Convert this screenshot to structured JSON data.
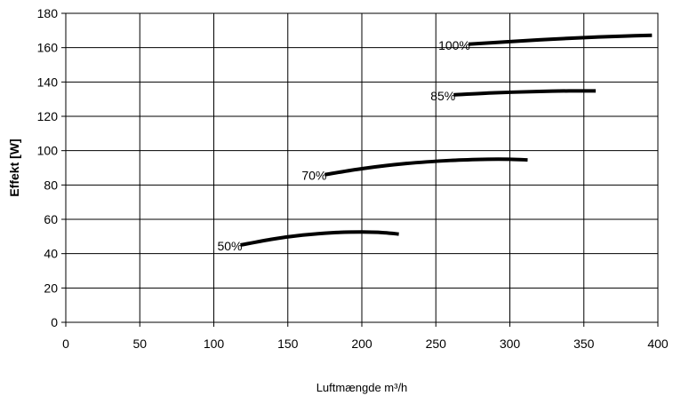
{
  "chart_data": {
    "type": "line",
    "title": "",
    "xlabel": "Luftmængde m³/h",
    "ylabel": "Effekt [W]",
    "xlim": [
      0,
      400
    ],
    "ylim": [
      0,
      180
    ],
    "xticks": [
      0,
      50,
      100,
      150,
      200,
      250,
      300,
      350,
      400
    ],
    "yticks": [
      0,
      20,
      40,
      60,
      80,
      100,
      120,
      140,
      160,
      180
    ],
    "grid": true,
    "legend": "none",
    "series": [
      {
        "label": "50%",
        "points": [
          [
            118,
            45
          ],
          [
            140,
            48.5
          ],
          [
            160,
            50.8
          ],
          [
            180,
            52.2
          ],
          [
            200,
            52.6
          ],
          [
            215,
            52.2
          ],
          [
            225,
            51.4
          ]
        ]
      },
      {
        "label": "70%",
        "points": [
          [
            175,
            86
          ],
          [
            200,
            89.5
          ],
          [
            230,
            92.5
          ],
          [
            260,
            94.3
          ],
          [
            285,
            95
          ],
          [
            300,
            95
          ],
          [
            312,
            94.6
          ]
        ]
      },
      {
        "label": "85%",
        "points": [
          [
            262,
            132.5
          ],
          [
            290,
            133.7
          ],
          [
            320,
            134.5
          ],
          [
            340,
            134.8
          ],
          [
            358,
            134.8
          ]
        ]
      },
      {
        "label": "100%",
        "points": [
          [
            272,
            162
          ],
          [
            300,
            163.5
          ],
          [
            330,
            165
          ],
          [
            360,
            166.2
          ],
          [
            380,
            166.8
          ],
          [
            396,
            167.2
          ]
        ]
      }
    ],
    "colors": {
      "line": "#000000",
      "grid": "#000000",
      "background": "#ffffff"
    }
  }
}
